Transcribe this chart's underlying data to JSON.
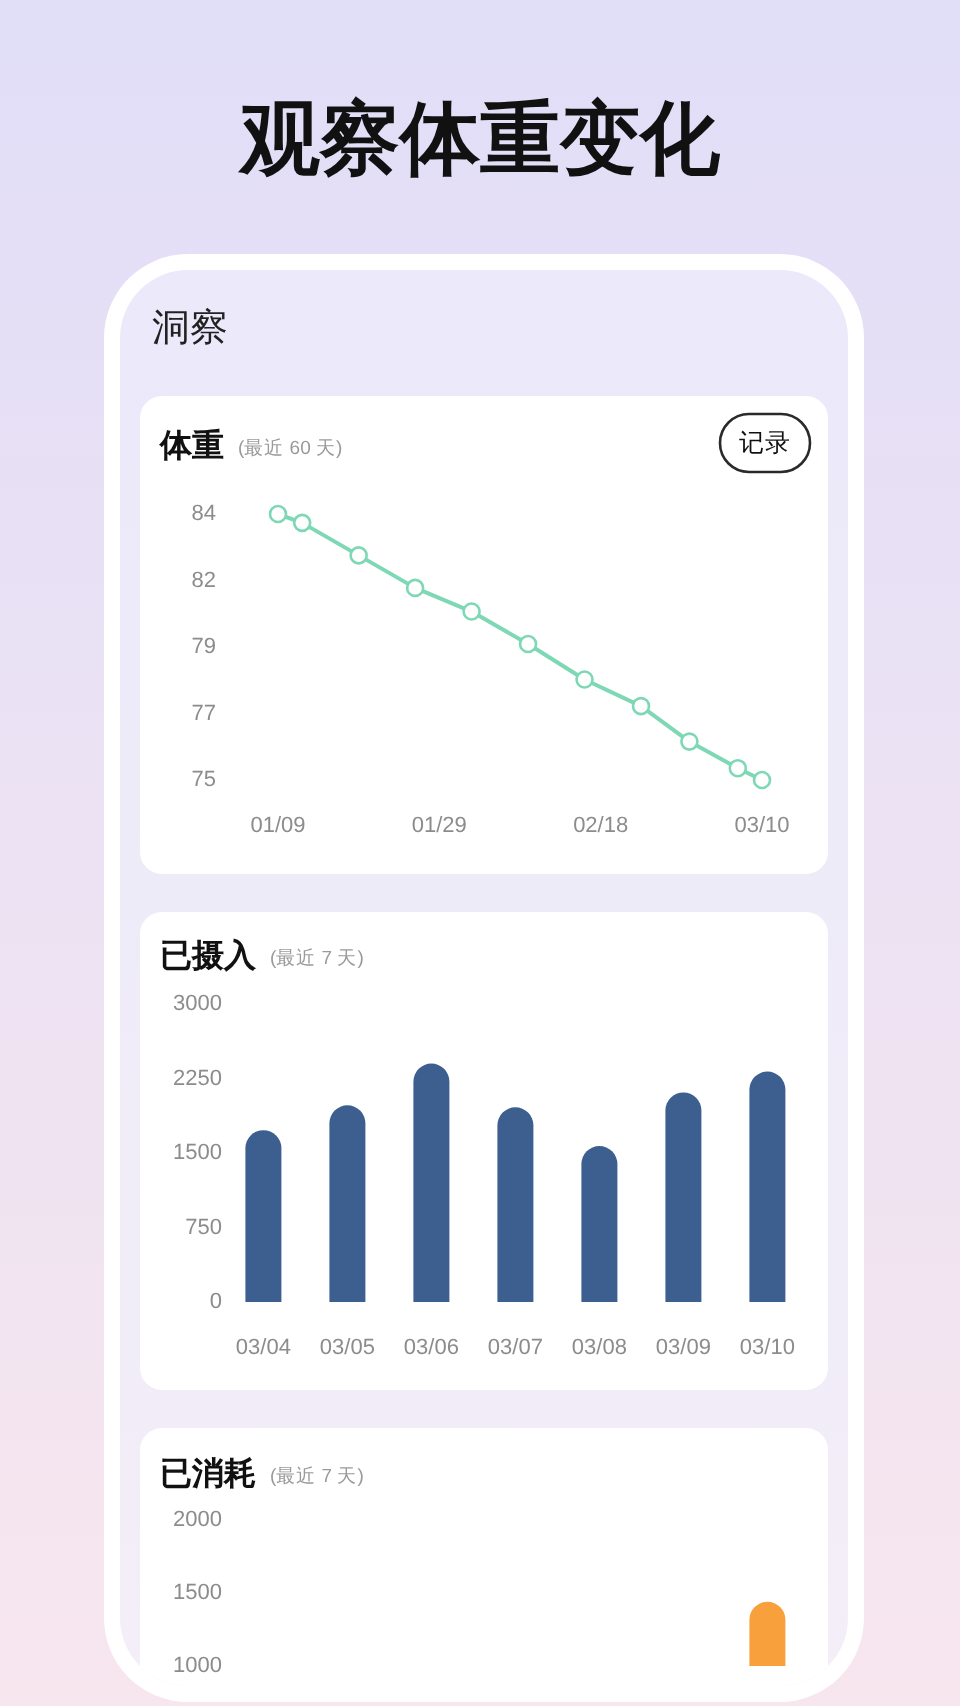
{
  "chart_data": [
    {
      "type": "other",
      "title": "观察体重变化",
      "annotations": [
        "洞察"
      ]
    },
    {
      "type": "line",
      "title": "体重",
      "subtitle": "(最近 60 天)",
      "annotations": [
        "记录"
      ],
      "x": [
        "--01-09",
        "--01-12",
        "--01-19",
        "--01-26",
        "--02-02",
        "--02-09",
        "--02-16",
        "--02-23",
        "--03-01",
        "--03-07",
        "--03-10"
      ],
      "values": [
        84.0,
        83.7,
        82.6,
        81.5,
        80.7,
        79.6,
        78.4,
        77.5,
        76.3,
        75.4,
        75.0
      ],
      "color": "#7fd8b5",
      "marker": "circle",
      "line_style": "solid",
      "xlim": [
        "--01-09",
        "--03-10"
      ],
      "xticks": [
        {
          "value": "--01-09",
          "label": "01/09"
        },
        {
          "value": "--01-29",
          "label": "01/29"
        },
        {
          "value": "--02-18",
          "label": "02/18"
        },
        {
          "value": "--03-10",
          "label": "03/10"
        }
      ],
      "ylim": [
        75,
        84
      ],
      "yticks": [
        75,
        {
          "value": 77.25,
          "label": "77"
        },
        {
          "value": 79.5,
          "label": "79"
        },
        {
          "value": 81.75,
          "label": "82"
        },
        84
      ]
    },
    {
      "type": "bar",
      "title": "已摄入",
      "subtitle": "(最近 7 天)",
      "categories": [
        "03/04",
        "03/05",
        "03/06",
        "03/07",
        "03/08",
        "03/09",
        "03/10"
      ],
      "values": [
        1730,
        1980,
        2400,
        1960,
        1570,
        2110,
        2320
      ],
      "color": "#3d5f8f",
      "ylim": [
        0,
        3000
      ],
      "yticks": [
        0,
        750,
        1500,
        2250,
        3000
      ]
    },
    {
      "type": "bar",
      "title": "已消耗",
      "subtitle": "(最近 7 天)",
      "categories": [
        null,
        null,
        null,
        null,
        null,
        null,
        null
      ],
      "values": [
        null,
        null,
        null,
        null,
        null,
        null,
        1440
      ],
      "color": "#f7a03c",
      "ylim": [
        1000,
        2000
      ],
      "yticks": [
        1000,
        1500,
        2000
      ]
    }
  ]
}
